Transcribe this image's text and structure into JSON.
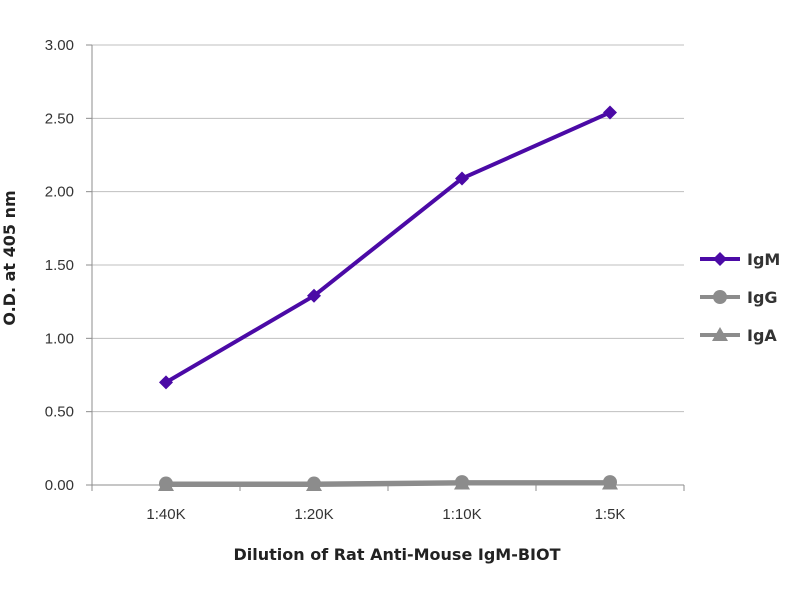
{
  "chart_data": {
    "type": "line",
    "title": "",
    "xlabel": "Dilution of Rat Anti-Mouse IgM-BIOT",
    "ylabel": "O.D. at 405 nm",
    "categories": [
      "1:40K",
      "1:20K",
      "1:10K",
      "1:5K"
    ],
    "ylim": [
      0,
      3.0
    ],
    "yticks": [
      "0.00",
      "0.50",
      "1.00",
      "1.50",
      "2.00",
      "2.50",
      "3.00"
    ],
    "grid": true,
    "legend_position": "right",
    "series": [
      {
        "name": "IgM",
        "values": [
          0.7,
          1.29,
          2.09,
          2.54
        ],
        "color": "#4b0aa6",
        "marker": "diamond"
      },
      {
        "name": "IgG",
        "values": [
          0.01,
          0.01,
          0.02,
          0.02
        ],
        "color": "#8c8c8c",
        "marker": "circle"
      },
      {
        "name": "IgA",
        "values": [
          0.0,
          0.0,
          0.01,
          0.01
        ],
        "color": "#8c8c8c",
        "marker": "triangle"
      }
    ]
  }
}
